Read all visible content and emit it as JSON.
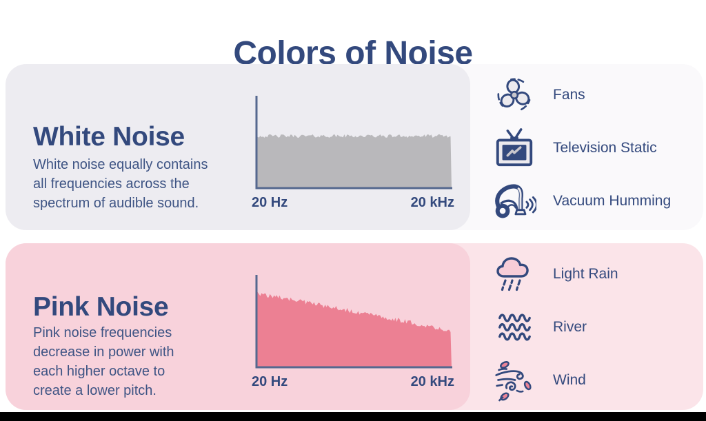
{
  "title": "Colors of Noise",
  "colors": {
    "title_navy": "#33497D",
    "text_navy": "#3E5484",
    "axis_slate": "#55688F",
    "white_outer": "#FAF9FB",
    "white_inner": "#EDECF1",
    "white_fill": "#B9B8BB",
    "pink_outer": "#FBE4E9",
    "pink_inner": "#F8D2DB",
    "pink_fill": "#EC8093",
    "icon_navy": "#33497D",
    "icon_gray": "#C9C7CD",
    "icon_light": "#ECEAEE",
    "cloud_pink": "#F7CDD8",
    "leaf_pink": "#EC8497",
    "bottom_bar": "#000000"
  },
  "panels": [
    {
      "name": "white-noise",
      "heading": "White Noise",
      "description": "White noise equally contains\nall frequencies across the\nspectrum of audible sound.",
      "x_left_label": "20 Hz",
      "x_right_label": "20 kHz",
      "examples": [
        {
          "icon": "fan-icon",
          "label": "Fans"
        },
        {
          "icon": "television-icon",
          "label": "Television Static"
        },
        {
          "icon": "vacuum-icon",
          "label": "Vacuum Humming"
        }
      ]
    },
    {
      "name": "pink-noise",
      "heading": "Pink Noise",
      "description": "Pink noise frequencies\ndecrease in power with\neach higher octave to\ncreate a lower pitch.",
      "x_left_label": "20 Hz",
      "x_right_label": "20 kHz",
      "examples": [
        {
          "icon": "rain-cloud-icon",
          "label": "Light Rain"
        },
        {
          "icon": "river-waves-icon",
          "label": "River"
        },
        {
          "icon": "wind-icon",
          "label": "Wind"
        }
      ]
    }
  ],
  "chart_data": [
    {
      "type": "area",
      "title": "White noise power spectrum",
      "xlabel_left": "20 Hz",
      "xlabel_right": "20 kHz",
      "x_axis": "audible frequency range (20 Hz to 20 kHz)",
      "y_axis": "relative power (unlabeled)",
      "shape": "flat - equal power at all frequencies",
      "relative_power_start": 0.59,
      "relative_power_end": 0.59,
      "noise_jitter": 0.02,
      "fill_color": "#B9B8BB",
      "axis_color": "#55688F",
      "grid": false,
      "legend": false
    },
    {
      "type": "area",
      "title": "Pink noise power spectrum",
      "xlabel_left": "20 Hz",
      "xlabel_right": "20 kHz",
      "x_axis": "audible frequency range (20 Hz to 20 kHz)",
      "y_axis": "relative power (unlabeled)",
      "shape": "declining - power decreases with each higher octave",
      "relative_power_start": 0.84,
      "relative_power_end": 0.42,
      "noise_jitter": 0.027,
      "fill_color": "#EC8093",
      "axis_color": "#55688F",
      "grid": false,
      "legend": false
    }
  ]
}
